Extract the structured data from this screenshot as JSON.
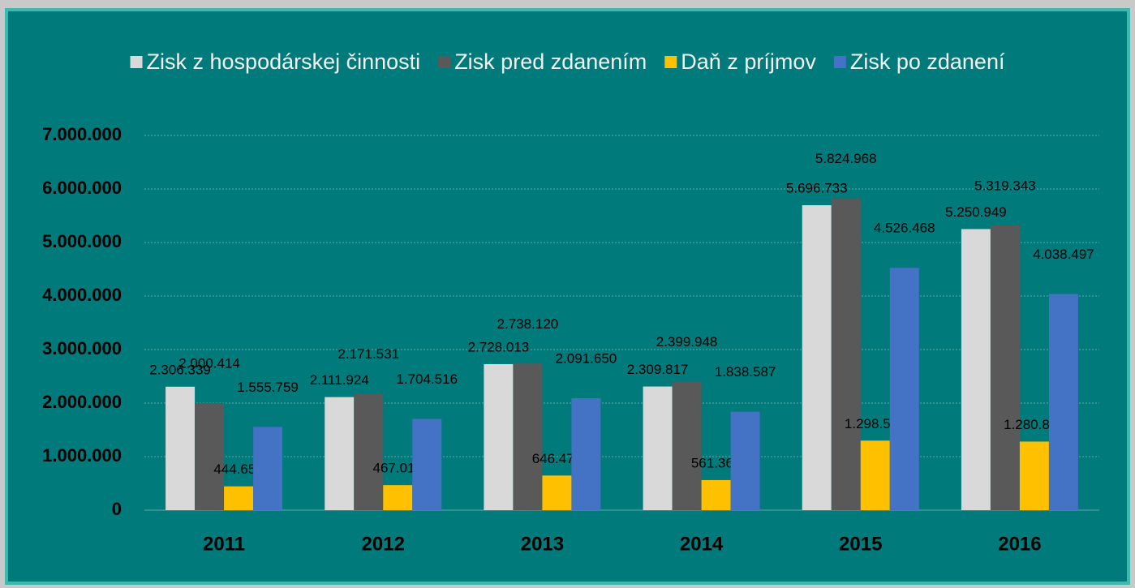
{
  "chart_data": {
    "type": "bar",
    "categories": [
      "2011",
      "2012",
      "2013",
      "2014",
      "2015",
      "2016"
    ],
    "series": [
      {
        "name": "Zisk z hospodárskej činnosti",
        "color": "#d9d9d9",
        "values": [
          2306339,
          2111924,
          2728013,
          2309817,
          5696733,
          5250949
        ],
        "value_labels": [
          "2.306.339",
          "2.111.924",
          "2.728.013",
          "2.309.817",
          "5.696.733",
          "5.250.949"
        ]
      },
      {
        "name": "Zisk pred zdanením",
        "color": "#595959",
        "values": [
          2000414,
          2171531,
          2738120,
          2399948,
          5824968,
          5319343
        ],
        "value_labels": [
          "2.000.414",
          "2.171.531",
          "2.738.120",
          "2.399.948",
          "5.824.968",
          "5.319.343"
        ]
      },
      {
        "name": "Daň z príjmov",
        "color": "#ffc000",
        "values": [
          444655,
          467015,
          646470,
          561361,
          1298500,
          1280846
        ],
        "value_labels": [
          "444.655",
          "467.015",
          "646.470",
          "561.361",
          "1.298.500",
          "1.280.846"
        ]
      },
      {
        "name": "Zisk po zdanení",
        "color": "#4472c4",
        "values": [
          1555759,
          1704516,
          2091650,
          1838587,
          4526468,
          4038497
        ],
        "value_labels": [
          "1.555.759",
          "1.704.516",
          "2.091.650",
          "1.838.587",
          "4.526.468",
          "4.038.497"
        ]
      }
    ],
    "ylim": [
      0,
      7000000
    ],
    "yticks": [
      0,
      {
        "value": 1000000,
        "label": "1.000.000"
      },
      {
        "value": 2000000,
        "label": "2.000.000"
      },
      {
        "value": 3000000,
        "label": "3.000.000"
      },
      {
        "value": 4000000,
        "label": "4.000.000"
      },
      {
        "value": 5000000,
        "label": "5.000.000"
      },
      {
        "value": 6000000,
        "label": "6.000.000"
      },
      {
        "value": 7000000,
        "label": "7.000.000"
      }
    ],
    "grid": true,
    "legend": "top"
  }
}
